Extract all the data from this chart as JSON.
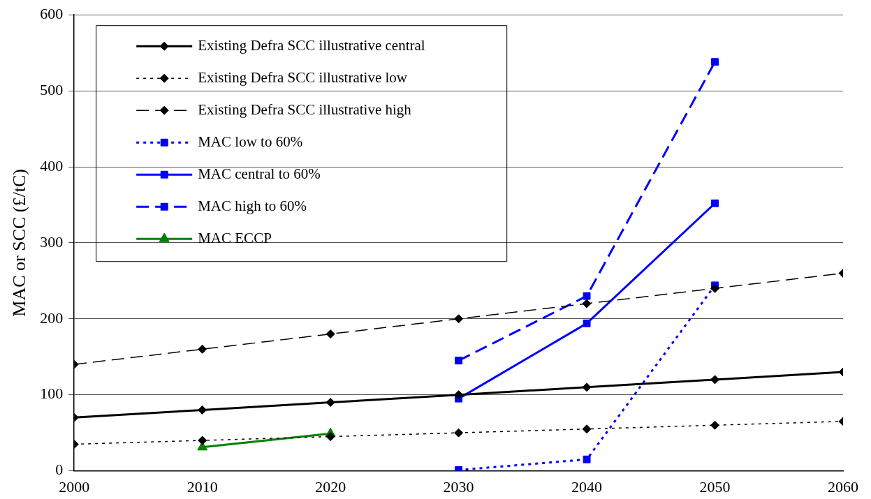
{
  "chart_data": {
    "type": "line",
    "ylabel": "MAC or SCC (£/tC)",
    "x": [
      2000,
      2010,
      2020,
      2030,
      2040,
      2050,
      2060
    ],
    "xlim": [
      2000,
      2060
    ],
    "xticks": [
      2000,
      2010,
      2020,
      2030,
      2040,
      2050,
      2060
    ],
    "ylim": [
      0,
      600
    ],
    "yticks": [
      0,
      100,
      200,
      300,
      400,
      500,
      600
    ],
    "grid": "y",
    "legend": "top left",
    "series": [
      {
        "name": "Existing Defra SCC illustrative central",
        "color": "#000000",
        "marker": "diamond",
        "line_style": "solid",
        "values": [
          70,
          80,
          90,
          100,
          110,
          120,
          130
        ]
      },
      {
        "name": "Existing Defra SCC illustrative low",
        "color": "#000000",
        "marker": "diamond",
        "line_style": "dotted",
        "values": [
          35,
          40,
          45,
          50,
          55,
          60,
          65
        ]
      },
      {
        "name": "Existing Defra SCC illustrative high",
        "color": "#000000",
        "marker": "diamond",
        "line_style": "dashed",
        "values": [
          140,
          160,
          180,
          200,
          220,
          240,
          260
        ]
      },
      {
        "name": "MAC low to 60%",
        "color": "#0000ff",
        "marker": "square",
        "line_style": "dotted",
        "x": [
          2030,
          2040,
          2050
        ],
        "values": [
          1,
          15,
          244
        ]
      },
      {
        "name": "MAC central to 60%",
        "color": "#0000ff",
        "marker": "square",
        "line_style": "solid",
        "x": [
          2030,
          2040,
          2050
        ],
        "values": [
          95,
          194,
          352
        ]
      },
      {
        "name": "MAC high to 60%",
        "color": "#0000ff",
        "marker": "square",
        "line_style": "dashed",
        "x": [
          2030,
          2040,
          2050
        ],
        "values": [
          145,
          230,
          538
        ]
      },
      {
        "name": "MAC ECCP",
        "color": "#008000",
        "marker": "triangle",
        "line_style": "solid",
        "x": [
          2010,
          2020
        ],
        "values": [
          31,
          49
        ]
      }
    ]
  }
}
